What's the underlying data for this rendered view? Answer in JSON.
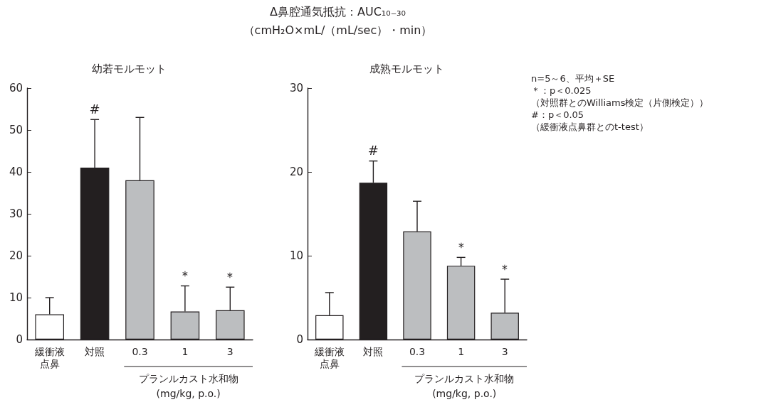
{
  "chart_data": [
    {
      "type": "bar",
      "title": "幼若モルモット",
      "ylabel": "Δ鼻腔通気抵抗：AUC₁₀₋₃₀\n（cmH₂O×mL/（mL/sec）・min）",
      "xlabel": "プランルカスト水和物\n(mg/kg, p.o.)",
      "categories": [
        "緩衝液点鼻",
        "対照",
        "0.3",
        "1",
        "3"
      ],
      "values": [
        6,
        41,
        38,
        6.7,
        7
      ],
      "errors": [
        [
          6,
          10
        ],
        [
          41,
          52.5
        ],
        [
          38,
          53
        ],
        [
          6.7,
          12.8
        ],
        [
          7,
          12.5
        ]
      ],
      "colors": [
        "#ffffff",
        "#231f20",
        "#bcbec0",
        "#bcbec0",
        "#bcbec0"
      ],
      "ylim": [
        0,
        60
      ],
      "yticks": [
        0,
        10,
        20,
        30,
        40,
        50,
        60
      ],
      "grid": false,
      "annotations": [
        {
          "text": "#",
          "x": "対照",
          "y": 52.5
        },
        {
          "text": "＊",
          "x": "1",
          "y": 12.8
        },
        {
          "text": "＊",
          "x": "3",
          "y": 12.5
        }
      ]
    },
    {
      "type": "bar",
      "title": "成熟モルモット",
      "xlabel": "プランルカスト水和物\n(mg/kg, p.o.)",
      "categories": [
        "緩衝液点鼻",
        "対照",
        "0.3",
        "1",
        "3"
      ],
      "values": [
        2.9,
        18.7,
        12.9,
        8.8,
        3.2
      ],
      "errors": [
        [
          2.9,
          5.6
        ],
        [
          18.7,
          21.3
        ],
        [
          12.9,
          16.5
        ],
        [
          8.8,
          9.8
        ],
        [
          3.2,
          7.2
        ]
      ],
      "colors": [
        "#ffffff",
        "#231f20",
        "#bcbec0",
        "#bcbec0",
        "#bcbec0"
      ],
      "ylim": [
        0,
        30
      ],
      "yticks": [
        0,
        10,
        20,
        30
      ],
      "grid": false,
      "annotations": [
        {
          "text": "#",
          "x": "対照",
          "y": 21.3
        },
        {
          "text": "＊",
          "x": "1",
          "y": 9.8
        },
        {
          "text": "＊",
          "x": "3",
          "y": 7.2
        },
        "n=5～6、平均＋SE",
        "＊：p＜0.025",
        "（対照群とのWilliams検定（片側検定））",
        "#：p＜0.05",
        "（緩衝液点鼻群とのt-test）"
      ]
    }
  ]
}
